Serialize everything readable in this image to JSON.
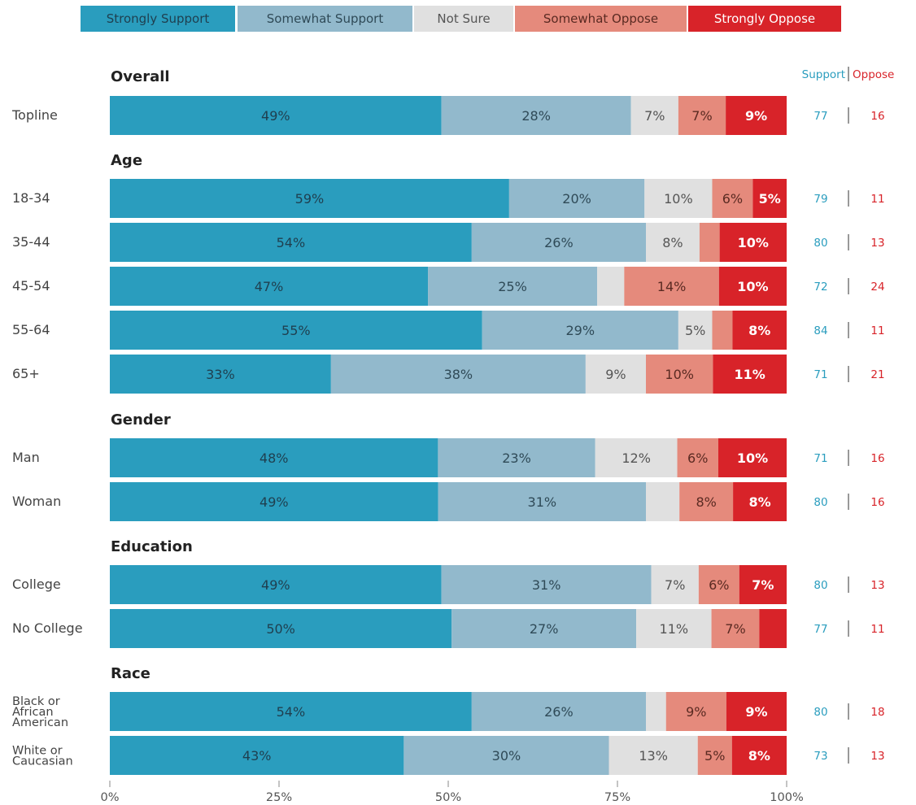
{
  "legend": [
    {
      "label": "Strongly Support",
      "color": "#2a9dbe",
      "text_color": "#1f3f4f"
    },
    {
      "label": "Somewhat Support",
      "color": "#92b9cc",
      "text_color": "#2f4a57"
    },
    {
      "label": "Not Sure",
      "color": "#e0e0e0",
      "text_color": "#555555"
    },
    {
      "label": "Somewhat Oppose",
      "color": "#e58a7c",
      "text_color": "#5a2a22"
    },
    {
      "label": "Strongly Oppose",
      "color": "#d82329",
      "text_color": "#ffffff"
    }
  ],
  "summary_headers": {
    "support": "Support",
    "oppose": "Oppose",
    "support_color": "#2a9dbe",
    "oppose_color": "#d82329"
  },
  "chart_data": {
    "type": "bar",
    "stacked": true,
    "orientation": "horizontal",
    "xlim": [
      0,
      100
    ],
    "x_ticks": [
      "0%",
      "25%",
      "50%",
      "75%",
      "100%"
    ],
    "series": [
      {
        "name": "Strongly Support",
        "color": "#2a9dbe"
      },
      {
        "name": "Somewhat Support",
        "color": "#92b9cc"
      },
      {
        "name": "Not Sure",
        "color": "#e0e0e0"
      },
      {
        "name": "Somewhat Oppose",
        "color": "#e58a7c"
      },
      {
        "name": "Strongly Oppose",
        "color": "#d82329"
      }
    ],
    "groups": [
      {
        "title": "Overall",
        "rows": [
          {
            "label": "Topline",
            "values": [
              49,
              28,
              7,
              7,
              9
            ],
            "labels": [
              "49%",
              "28%",
              "7%",
              "7%",
              "9%"
            ],
            "support": "77",
            "oppose": "16"
          }
        ]
      },
      {
        "title": "Age",
        "rows": [
          {
            "label": "18-34",
            "values": [
              59,
              20,
              10,
              6,
              5
            ],
            "labels": [
              "59%",
              "20%",
              "10%",
              "6%",
              "5%"
            ],
            "support": "79",
            "oppose": "11"
          },
          {
            "label": "35-44",
            "values": [
              54,
              26,
              8,
              3,
              10
            ],
            "labels": [
              "54%",
              "26%",
              "8%",
              "",
              "10%"
            ],
            "support": "80",
            "oppose": "13"
          },
          {
            "label": "45-54",
            "values": [
              47,
              25,
              4,
              14,
              10
            ],
            "labels": [
              "47%",
              "25%",
              "",
              "14%",
              "10%"
            ],
            "support": "72",
            "oppose": "24"
          },
          {
            "label": "55-64",
            "values": [
              55,
              29,
              5,
              3,
              8
            ],
            "labels": [
              "55%",
              "29%",
              "5%",
              "",
              "8%"
            ],
            "support": "84",
            "oppose": "11"
          },
          {
            "label": "65+",
            "values": [
              33,
              38,
              9,
              10,
              11
            ],
            "labels": [
              "33%",
              "38%",
              "9%",
              "10%",
              "11%"
            ],
            "support": "71",
            "oppose": "21"
          }
        ]
      },
      {
        "title": "Gender",
        "rows": [
          {
            "label": "Man",
            "values": [
              48,
              23,
              12,
              6,
              10
            ],
            "labels": [
              "48%",
              "23%",
              "12%",
              "6%",
              "10%"
            ],
            "support": "71",
            "oppose": "16"
          },
          {
            "label": "Woman",
            "values": [
              49,
              31,
              5,
              8,
              8
            ],
            "labels": [
              "49%",
              "31%",
              "",
              "8%",
              "8%"
            ],
            "support": "80",
            "oppose": "16"
          }
        ]
      },
      {
        "title": "Education",
        "rows": [
          {
            "label": "College",
            "values": [
              49,
              31,
              7,
              6,
              7
            ],
            "labels": [
              "49%",
              "31%",
              "7%",
              "6%",
              "7%"
            ],
            "support": "80",
            "oppose": "13"
          },
          {
            "label": "No College",
            "values": [
              50,
              27,
              11,
              7,
              4
            ],
            "labels": [
              "50%",
              "27%",
              "11%",
              "7%",
              ""
            ],
            "support": "77",
            "oppose": "11"
          }
        ]
      },
      {
        "title": "Race",
        "rows": [
          {
            "label": "Black or African American",
            "label_lines": [
              "Black or",
              "African",
              "American"
            ],
            "values": [
              54,
              26,
              3,
              9,
              9
            ],
            "labels": [
              "54%",
              "26%",
              "",
              "9%",
              "9%"
            ],
            "support": "80",
            "oppose": "18"
          },
          {
            "label": "White or Caucasian",
            "label_lines": [
              "White or",
              "Caucasian"
            ],
            "values": [
              43,
              30,
              13,
              5,
              8
            ],
            "labels": [
              "43%",
              "30%",
              "13%",
              "5%",
              "8%"
            ],
            "support": "73",
            "oppose": "13"
          }
        ]
      }
    ]
  }
}
